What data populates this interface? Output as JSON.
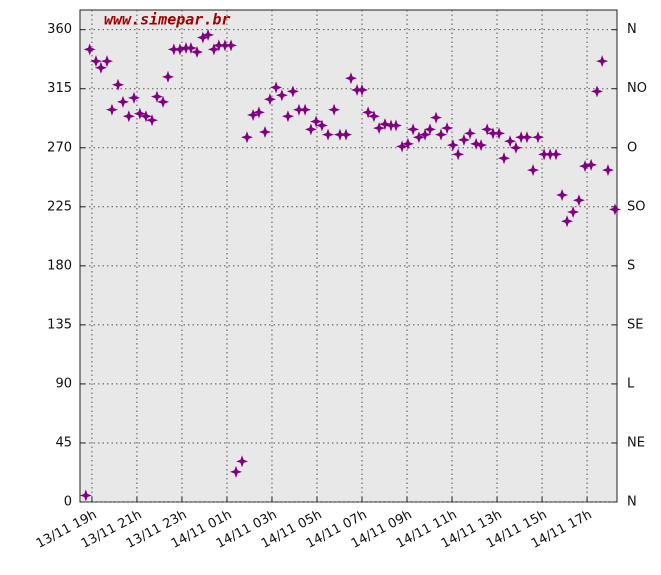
{
  "chart_data": {
    "type": "scatter",
    "watermark": "www.simepar.br",
    "color": "#800080",
    "grid": true,
    "x": [
      -0.27,
      -0.1,
      0.18,
      0.4,
      0.67,
      0.89,
      1.16,
      1.38,
      1.64,
      1.87,
      2.13,
      2.4,
      2.67,
      2.89,
      3.16,
      3.38,
      3.64,
      3.91,
      4.18,
      4.4,
      4.67,
      4.93,
      5.16,
      5.42,
      5.64,
      5.91,
      6.18,
      6.4,
      6.67,
      6.89,
      7.16,
      7.42,
      7.69,
      7.91,
      8.18,
      8.44,
      8.71,
      8.93,
      9.2,
      9.47,
      9.73,
      9.96,
      10.22,
      10.49,
      10.76,
      11.02,
      11.29,
      11.51,
      11.78,
      12,
      12.27,
      12.53,
      12.76,
      13.02,
      13.29,
      13.51,
      13.78,
      14.04,
      14.27,
      14.53,
      14.8,
      15.02,
      15.29,
      15.51,
      15.78,
      16.04,
      16.27,
      16.53,
      16.8,
      17.07,
      17.29,
      17.56,
      17.82,
      18.09,
      18.31,
      18.58,
      18.84,
      19.07,
      19.33,
      19.6,
      19.82,
      20.09,
      20.36,
      20.62,
      20.89,
      21.11,
      21.38,
      21.64,
      21.91,
      22.18,
      22.44,
      22.67,
      22.93,
      23.24
    ],
    "values": [
      5,
      345,
      336,
      331,
      336,
      299,
      318,
      305,
      294,
      308,
      296,
      294,
      291,
      309,
      305,
      324,
      345,
      345,
      346,
      346,
      343,
      354,
      356,
      345,
      348,
      348,
      348,
      23,
      31,
      278,
      295,
      297,
      282,
      307,
      316,
      310,
      294,
      313,
      299,
      299,
      284,
      290,
      287,
      280,
      299,
      280,
      280,
      323,
      314,
      314,
      297,
      294,
      285,
      288,
      287,
      287,
      271,
      273,
      284,
      278,
      280,
      284,
      293,
      280,
      285,
      272,
      265,
      276,
      281,
      273,
      272,
      284,
      281,
      281,
      262,
      275,
      270,
      278,
      278,
      253,
      278,
      265,
      265,
      265,
      234,
      214,
      221,
      230,
      256,
      257,
      313,
      336,
      253,
      223
    ],
    "xlim": [
      -0.53,
      23.33
    ],
    "xticks": [
      {
        "value": 0,
        "label": "13/11 19h"
      },
      {
        "value": 2,
        "label": "13/11 21h"
      },
      {
        "value": 4,
        "label": "13/11 23h"
      },
      {
        "value": 6,
        "label": "14/11 01h"
      },
      {
        "value": 8,
        "label": "14/11 03h"
      },
      {
        "value": 10,
        "label": "14/11 05h"
      },
      {
        "value": 12,
        "label": "14/11 07h"
      },
      {
        "value": 14,
        "label": "14/11 09h"
      },
      {
        "value": 16,
        "label": "14/11 11h"
      },
      {
        "value": 18,
        "label": "14/11 13h"
      },
      {
        "value": 20,
        "label": "14/11 15h"
      },
      {
        "value": 22,
        "label": "14/11 17h"
      }
    ],
    "ylim": [
      0,
      375
    ],
    "yticks": [
      0,
      45,
      90,
      135,
      180,
      225,
      270,
      315,
      360
    ],
    "y2lim": [
      0,
      375
    ],
    "y2ticks": [
      {
        "value": 0,
        "label": "N"
      },
      {
        "value": 45,
        "label": "NE"
      },
      {
        "value": 90,
        "label": "L"
      },
      {
        "value": 135,
        "label": "SE"
      },
      {
        "value": 180,
        "label": "S"
      },
      {
        "value": 225,
        "label": "SO"
      },
      {
        "value": 270,
        "label": "O"
      },
      {
        "value": 315,
        "label": "NO"
      },
      {
        "value": 360,
        "label": "N"
      }
    ]
  }
}
